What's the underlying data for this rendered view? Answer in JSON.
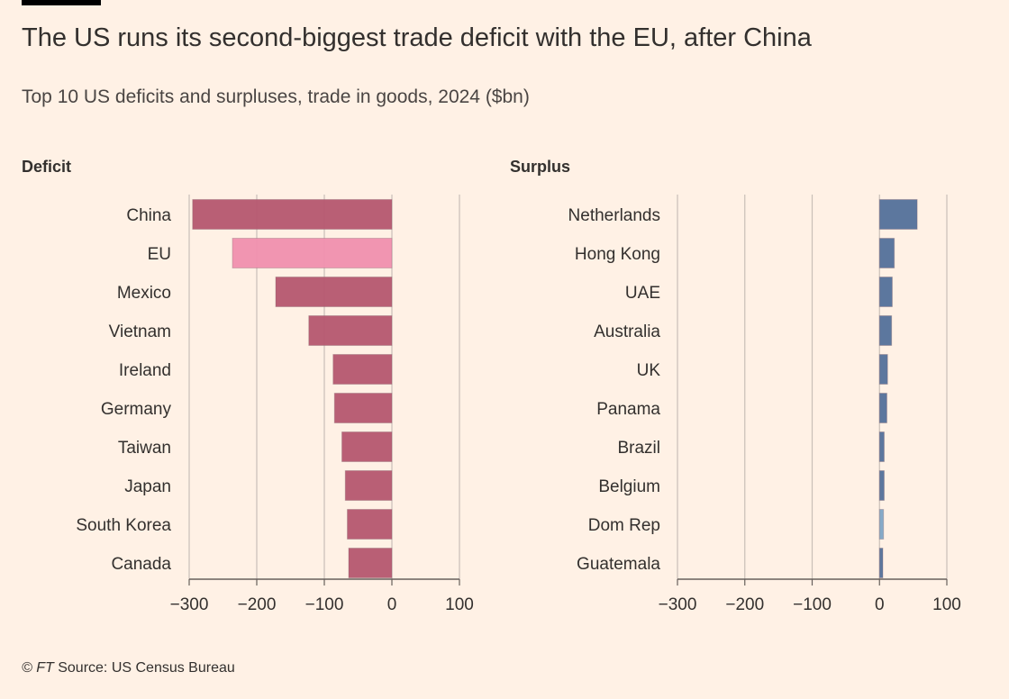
{
  "title": "The US runs its second-biggest trade deficit with the EU, after China",
  "subtitle": "Top 10 US deficits and surpluses, trade in goods, 2024 ($bn)",
  "footer": {
    "brand": "© FT",
    "source": " Source: US Census Bureau"
  },
  "colors": {
    "background": "#FFF1E5",
    "deficit_bar": "#B5566F",
    "eu_highlight": "#F08FAE",
    "surplus_bar": "#53709A",
    "dom_rep_highlight": "#7EA5C6",
    "gridline": "#C9BFB8"
  },
  "chart_data": [
    {
      "type": "bar",
      "orientation": "horizontal",
      "title": "Deficit",
      "categories": [
        "China",
        "EU",
        "Mexico",
        "Vietnam",
        "Ireland",
        "Germany",
        "Taiwan",
        "Japan",
        "South Korea",
        "Canada"
      ],
      "values": [
        -295,
        -236,
        -172,
        -123,
        -87,
        -85,
        -74,
        -69,
        -66,
        -64
      ],
      "highlight": "EU",
      "xlim": [
        -300,
        100
      ],
      "xticks": [
        "-300",
        "-200",
        "-100",
        "0",
        "100"
      ],
      "grid": true
    },
    {
      "type": "bar",
      "orientation": "horizontal",
      "title": "Surplus",
      "categories": [
        "Netherlands",
        "Hong Kong",
        "UAE",
        "Australia",
        "UK",
        "Panama",
        "Brazil",
        "Belgium",
        "Dom Rep",
        "Guatemala"
      ],
      "values": [
        56,
        22,
        19,
        18,
        12,
        11,
        7,
        7,
        6,
        5
      ],
      "highlight": "Dom Rep",
      "xlim": [
        -300,
        100
      ],
      "xticks": [
        "-300",
        "-200",
        "-100",
        "0",
        "100"
      ],
      "grid": true
    }
  ]
}
